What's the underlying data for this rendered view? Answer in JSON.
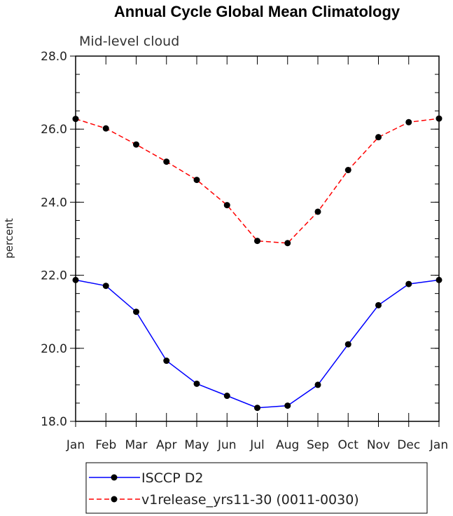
{
  "chart_data": {
    "type": "line",
    "title": "Annual Cycle Global Mean Climatology",
    "subtitle": "Mid-level cloud",
    "ylabel": "percent",
    "xlabel": "",
    "categories": [
      "Jan",
      "Feb",
      "Mar",
      "Apr",
      "May",
      "Jun",
      "Jul",
      "Aug",
      "Sep",
      "Oct",
      "Nov",
      "Dec",
      "Jan"
    ],
    "ylim": [
      18.0,
      28.0
    ],
    "yticks": [
      "18.0",
      "20.0",
      "22.0",
      "24.0",
      "26.0",
      "28.0"
    ],
    "legend_position": "bottom",
    "series": [
      {
        "name": "ISCCP D2",
        "color": "#0000ff",
        "dash": "solid",
        "values": [
          21.87,
          21.71,
          21.0,
          19.66,
          19.03,
          18.7,
          18.37,
          18.43,
          19.0,
          20.11,
          21.18,
          21.76,
          21.87
        ]
      },
      {
        "name": "v1release_yrs11-30 (0011-0030)",
        "color": "#ff0000",
        "dash": "dashed",
        "values": [
          26.28,
          26.02,
          25.58,
          25.11,
          24.61,
          23.92,
          22.94,
          22.88,
          23.74,
          24.88,
          25.78,
          26.19,
          26.29
        ]
      }
    ]
  }
}
